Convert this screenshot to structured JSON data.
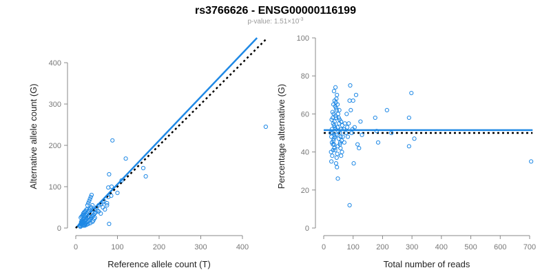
{
  "title": "rs3766626 - ENSG00000116199",
  "subtitle_prefix": "p-value: 1.51×10",
  "subtitle_exponent": "-3",
  "colors": {
    "points": "#1e88e5",
    "fit_line": "#1e88e5",
    "reference_line": "#000000",
    "axis": "#888888",
    "label": "#222222",
    "subtitle": "#999999"
  },
  "chart_data": [
    {
      "type": "scatter",
      "xlabel": "Reference allele count (T)",
      "ylabel": "Alternative allele count (G)",
      "xlim": [
        0,
        440
      ],
      "ylim": [
        0,
        460
      ],
      "xticks": [
        0,
        100,
        200,
        300,
        400
      ],
      "yticks": [
        0,
        100,
        200,
        300,
        400
      ],
      "grid": false,
      "lines": [
        {
          "style": "solid",
          "color": "#1e88e5",
          "x": [
            0,
            435
          ],
          "y": [
            0,
            460
          ]
        },
        {
          "style": "dotted",
          "color": "#000000",
          "x": [
            0,
            460
          ],
          "y": [
            0,
            460
          ]
        }
      ],
      "points": [
        {
          "x": 12,
          "y": 5
        },
        {
          "x": 14,
          "y": 8
        },
        {
          "x": 16,
          "y": 10
        },
        {
          "x": 18,
          "y": 12
        },
        {
          "x": 20,
          "y": 15
        },
        {
          "x": 22,
          "y": 18
        },
        {
          "x": 24,
          "y": 20
        },
        {
          "x": 26,
          "y": 22
        },
        {
          "x": 28,
          "y": 25
        },
        {
          "x": 30,
          "y": 28
        },
        {
          "x": 13,
          "y": 15
        },
        {
          "x": 15,
          "y": 18
        },
        {
          "x": 17,
          "y": 20
        },
        {
          "x": 19,
          "y": 22
        },
        {
          "x": 21,
          "y": 24
        },
        {
          "x": 12,
          "y": 25
        },
        {
          "x": 14,
          "y": 28
        },
        {
          "x": 16,
          "y": 30
        },
        {
          "x": 18,
          "y": 32
        },
        {
          "x": 13,
          "y": 12
        },
        {
          "x": 15,
          "y": 14
        },
        {
          "x": 17,
          "y": 16
        },
        {
          "x": 19,
          "y": 6
        },
        {
          "x": 21,
          "y": 8
        },
        {
          "x": 23,
          "y": 10
        },
        {
          "x": 25,
          "y": 12
        },
        {
          "x": 27,
          "y": 14
        },
        {
          "x": 29,
          "y": 16
        },
        {
          "x": 31,
          "y": 18
        },
        {
          "x": 33,
          "y": 20
        },
        {
          "x": 35,
          "y": 22
        },
        {
          "x": 37,
          "y": 25
        },
        {
          "x": 39,
          "y": 28
        },
        {
          "x": 41,
          "y": 30
        },
        {
          "x": 43,
          "y": 32
        },
        {
          "x": 45,
          "y": 35
        },
        {
          "x": 25,
          "y": 30
        },
        {
          "x": 27,
          "y": 35
        },
        {
          "x": 29,
          "y": 38
        },
        {
          "x": 31,
          "y": 40
        },
        {
          "x": 33,
          "y": 45
        },
        {
          "x": 35,
          "y": 48
        },
        {
          "x": 37,
          "y": 50
        },
        {
          "x": 28,
          "y": 55
        },
        {
          "x": 30,
          "y": 60
        },
        {
          "x": 32,
          "y": 65
        },
        {
          "x": 34,
          "y": 70
        },
        {
          "x": 36,
          "y": 75
        },
        {
          "x": 38,
          "y": 80
        },
        {
          "x": 40,
          "y": 55
        },
        {
          "x": 45,
          "y": 45
        },
        {
          "x": 50,
          "y": 50
        },
        {
          "x": 55,
          "y": 55
        },
        {
          "x": 60,
          "y": 58
        },
        {
          "x": 65,
          "y": 50
        },
        {
          "x": 70,
          "y": 45
        },
        {
          "x": 55,
          "y": 40
        },
        {
          "x": 60,
          "y": 35
        },
        {
          "x": 48,
          "y": 38
        },
        {
          "x": 52,
          "y": 42
        },
        {
          "x": 18,
          "y": 35
        },
        {
          "x": 20,
          "y": 38
        },
        {
          "x": 22,
          "y": 40
        },
        {
          "x": 24,
          "y": 42
        },
        {
          "x": 26,
          "y": 45
        },
        {
          "x": 11,
          "y": 3
        },
        {
          "x": 10,
          "y": 7
        },
        {
          "x": 12,
          "y": 10
        },
        {
          "x": 14,
          "y": 12
        },
        {
          "x": 16,
          "y": 6
        },
        {
          "x": 40,
          "y": 15
        },
        {
          "x": 42,
          "y": 18
        },
        {
          "x": 44,
          "y": 22
        },
        {
          "x": 46,
          "y": 25
        },
        {
          "x": 35,
          "y": 12
        },
        {
          "x": 30,
          "y": 10
        },
        {
          "x": 26,
          "y": 8
        },
        {
          "x": 22,
          "y": 6
        },
        {
          "x": 20,
          "y": 30
        },
        {
          "x": 23,
          "y": 32
        },
        {
          "x": 65,
          "y": 62
        },
        {
          "x": 68,
          "y": 65
        },
        {
          "x": 75,
          "y": 60
        },
        {
          "x": 78,
          "y": 98
        },
        {
          "x": 78,
          "y": 75
        },
        {
          "x": 80,
          "y": 130
        },
        {
          "x": 86,
          "y": 100
        },
        {
          "x": 88,
          "y": 212
        },
        {
          "x": 80,
          "y": 10
        },
        {
          "x": 75,
          "y": 55
        },
        {
          "x": 85,
          "y": 78
        },
        {
          "x": 100,
          "y": 85
        },
        {
          "x": 110,
          "y": 115
        },
        {
          "x": 120,
          "y": 168
        },
        {
          "x": 162,
          "y": 145
        },
        {
          "x": 168,
          "y": 125
        },
        {
          "x": 456,
          "y": 245
        }
      ]
    },
    {
      "type": "scatter",
      "xlabel": "Total number of reads",
      "ylabel": "Percentage alternative (G)",
      "xlim": [
        0,
        710
      ],
      "ylim": [
        0,
        100
      ],
      "xticks": [
        0,
        100,
        200,
        300,
        400,
        500,
        600,
        700
      ],
      "yticks": [
        0,
        20,
        40,
        60,
        80,
        100
      ],
      "grid": false,
      "lines": [
        {
          "style": "solid",
          "color": "#1e88e5",
          "x": [
            0,
            710
          ],
          "y": [
            51.5,
            51.5
          ]
        },
        {
          "style": "dotted",
          "color": "#000000",
          "x": [
            0,
            710
          ],
          "y": [
            50,
            50
          ]
        }
      ],
      "points": [
        {
          "x": 25,
          "y": 40
        },
        {
          "x": 28,
          "y": 45
        },
        {
          "x": 30,
          "y": 50
        },
        {
          "x": 32,
          "y": 55
        },
        {
          "x": 34,
          "y": 60
        },
        {
          "x": 36,
          "y": 42
        },
        {
          "x": 38,
          "y": 48
        },
        {
          "x": 40,
          "y": 52
        },
        {
          "x": 42,
          "y": 58
        },
        {
          "x": 44,
          "y": 62
        },
        {
          "x": 26,
          "y": 35
        },
        {
          "x": 29,
          "y": 38
        },
        {
          "x": 31,
          "y": 44
        },
        {
          "x": 33,
          "y": 46
        },
        {
          "x": 35,
          "y": 54
        },
        {
          "x": 37,
          "y": 56
        },
        {
          "x": 39,
          "y": 64
        },
        {
          "x": 41,
          "y": 66
        },
        {
          "x": 43,
          "y": 68
        },
        {
          "x": 45,
          "y": 70
        },
        {
          "x": 27,
          "y": 57
        },
        {
          "x": 30,
          "y": 61
        },
        {
          "x": 32,
          "y": 41
        },
        {
          "x": 34,
          "y": 47
        },
        {
          "x": 36,
          "y": 49
        },
        {
          "x": 38,
          "y": 53
        },
        {
          "x": 40,
          "y": 59
        },
        {
          "x": 42,
          "y": 63
        },
        {
          "x": 44,
          "y": 37
        },
        {
          "x": 46,
          "y": 39
        },
        {
          "x": 48,
          "y": 43
        },
        {
          "x": 50,
          "y": 51
        },
        {
          "x": 52,
          "y": 55
        },
        {
          "x": 54,
          "y": 57
        },
        {
          "x": 56,
          "y": 45
        },
        {
          "x": 58,
          "y": 48
        },
        {
          "x": 60,
          "y": 52
        },
        {
          "x": 62,
          "y": 40
        },
        {
          "x": 47,
          "y": 65
        },
        {
          "x": 49,
          "y": 60
        },
        {
          "x": 51,
          "y": 58
        },
        {
          "x": 53,
          "y": 62
        },
        {
          "x": 55,
          "y": 50
        },
        {
          "x": 57,
          "y": 42
        },
        {
          "x": 59,
          "y": 38
        },
        {
          "x": 61,
          "y": 46
        },
        {
          "x": 35,
          "y": 72
        },
        {
          "x": 40,
          "y": 74
        },
        {
          "x": 45,
          "y": 32
        },
        {
          "x": 42,
          "y": 34
        },
        {
          "x": 48,
          "y": 26
        },
        {
          "x": 33,
          "y": 65
        },
        {
          "x": 37,
          "y": 67
        },
        {
          "x": 28,
          "y": 52
        },
        {
          "x": 24,
          "y": 50
        },
        {
          "x": 26,
          "y": 48
        },
        {
          "x": 31,
          "y": 58
        },
        {
          "x": 35,
          "y": 44
        },
        {
          "x": 39,
          "y": 41
        },
        {
          "x": 43,
          "y": 49
        },
        {
          "x": 47,
          "y": 53
        },
        {
          "x": 51,
          "y": 47
        },
        {
          "x": 55,
          "y": 44
        },
        {
          "x": 59,
          "y": 56
        },
        {
          "x": 63,
          "y": 54
        },
        {
          "x": 65,
          "y": 48
        },
        {
          "x": 68,
          "y": 52
        },
        {
          "x": 70,
          "y": 45
        },
        {
          "x": 72,
          "y": 55
        },
        {
          "x": 75,
          "y": 50
        },
        {
          "x": 78,
          "y": 60
        },
        {
          "x": 80,
          "y": 53
        },
        {
          "x": 82,
          "y": 48
        },
        {
          "x": 85,
          "y": 55
        },
        {
          "x": 88,
          "y": 67
        },
        {
          "x": 90,
          "y": 75
        },
        {
          "x": 92,
          "y": 62
        },
        {
          "x": 95,
          "y": 50
        },
        {
          "x": 98,
          "y": 52
        },
        {
          "x": 100,
          "y": 67
        },
        {
          "x": 102,
          "y": 34
        },
        {
          "x": 105,
          "y": 53
        },
        {
          "x": 110,
          "y": 70
        },
        {
          "x": 115,
          "y": 44
        },
        {
          "x": 120,
          "y": 42
        },
        {
          "x": 125,
          "y": 56
        },
        {
          "x": 130,
          "y": 49
        },
        {
          "x": 88,
          "y": 12
        },
        {
          "x": 175,
          "y": 58
        },
        {
          "x": 180,
          "y": 51
        },
        {
          "x": 185,
          "y": 45
        },
        {
          "x": 215,
          "y": 62
        },
        {
          "x": 230,
          "y": 50
        },
        {
          "x": 290,
          "y": 58
        },
        {
          "x": 298,
          "y": 71
        },
        {
          "x": 290,
          "y": 43
        },
        {
          "x": 308,
          "y": 47
        },
        {
          "x": 705,
          "y": 35
        }
      ]
    }
  ]
}
